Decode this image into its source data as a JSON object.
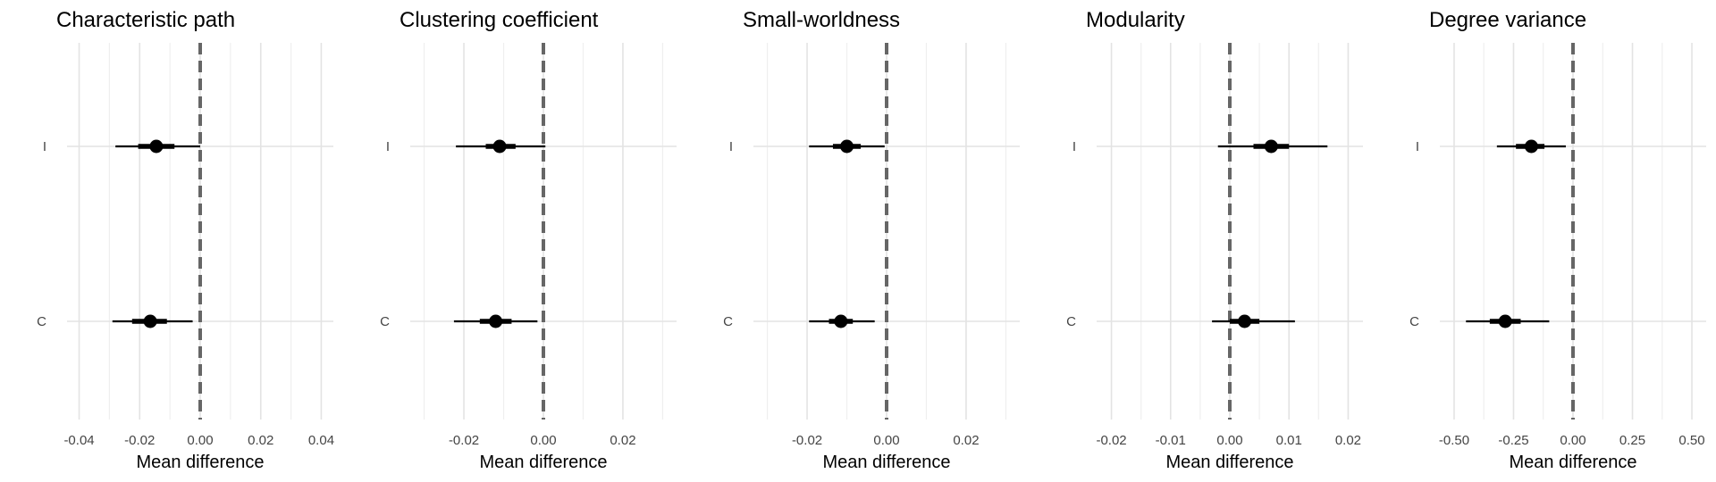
{
  "chart_data": [
    {
      "type": "scatter",
      "title": "Characteristic path",
      "xlabel": "Mean difference",
      "xlim": [
        -0.044,
        0.044
      ],
      "xticks": [
        -0.04,
        -0.02,
        0.0,
        0.02,
        0.04
      ],
      "xtick_labels": [
        "-0.04",
        "-0.02",
        "0.00",
        "0.02",
        "0.04"
      ],
      "minor_xticks": [
        -0.03,
        -0.01,
        0.01,
        0.03
      ],
      "categories": [
        "I",
        "C"
      ],
      "estimates": [
        {
          "category": "I",
          "mean": -0.0145,
          "inner": [
            -0.0205,
            -0.0085
          ],
          "outer": [
            -0.028,
            0.0
          ]
        },
        {
          "category": "C",
          "mean": -0.0165,
          "inner": [
            -0.0225,
            -0.011
          ],
          "outer": [
            -0.029,
            -0.0025
          ]
        }
      ],
      "reference_line": 0
    },
    {
      "type": "scatter",
      "title": "Clustering coefficient",
      "xlabel": "Mean difference",
      "xlim": [
        -0.0335,
        0.0335
      ],
      "xticks": [
        -0.02,
        0.0,
        0.02
      ],
      "xtick_labels": [
        "-0.02",
        "0.00",
        "0.02"
      ],
      "minor_xticks": [
        -0.03,
        -0.01,
        0.01,
        0.03
      ],
      "categories": [
        "I",
        "C"
      ],
      "estimates": [
        {
          "category": "I",
          "mean": -0.011,
          "inner": [
            -0.0145,
            -0.007
          ],
          "outer": [
            -0.022,
            0.0005
          ]
        },
        {
          "category": "C",
          "mean": -0.012,
          "inner": [
            -0.016,
            -0.008
          ],
          "outer": [
            -0.0225,
            -0.0015
          ]
        }
      ],
      "reference_line": 0
    },
    {
      "type": "scatter",
      "title": "Small-worldness",
      "xlabel": "Mean difference",
      "xlim": [
        -0.0335,
        0.0335
      ],
      "xticks": [
        -0.02,
        0.0,
        0.02
      ],
      "xtick_labels": [
        "-0.02",
        "0.00",
        "0.02"
      ],
      "minor_xticks": [
        -0.03,
        -0.01,
        0.01,
        0.03
      ],
      "categories": [
        "I",
        "C"
      ],
      "estimates": [
        {
          "category": "I",
          "mean": -0.01,
          "inner": [
            -0.0135,
            -0.0065
          ],
          "outer": [
            -0.0195,
            -0.0005
          ]
        },
        {
          "category": "C",
          "mean": -0.0115,
          "inner": [
            -0.0145,
            -0.0085
          ],
          "outer": [
            -0.0195,
            -0.003
          ]
        }
      ],
      "reference_line": 0
    },
    {
      "type": "scatter",
      "title": "Modularity",
      "xlabel": "Mean difference",
      "xlim": [
        -0.0225,
        0.0225
      ],
      "xticks": [
        -0.02,
        -0.01,
        0.0,
        0.01,
        0.02
      ],
      "xtick_labels": [
        "-0.02",
        "-0.01",
        "0.00",
        "0.01",
        "0.02"
      ],
      "minor_xticks": [
        -0.015,
        -0.005,
        0.005,
        0.015
      ],
      "categories": [
        "I",
        "C"
      ],
      "estimates": [
        {
          "category": "I",
          "mean": 0.007,
          "inner": [
            0.004,
            0.01
          ],
          "outer": [
            -0.002,
            0.0165
          ]
        },
        {
          "category": "C",
          "mean": 0.0025,
          "inner": [
            0.0,
            0.005
          ],
          "outer": [
            -0.003,
            0.011
          ]
        }
      ],
      "reference_line": 0
    },
    {
      "type": "scatter",
      "title": "Degree variance",
      "xlabel": "Mean difference",
      "xlim": [
        -0.56,
        0.56
      ],
      "xticks": [
        -0.5,
        -0.25,
        0.0,
        0.25,
        0.5
      ],
      "xtick_labels": [
        "-0.50",
        "-0.25",
        "0.00",
        "0.25",
        "0.50"
      ],
      "minor_xticks": [
        -0.375,
        -0.125,
        0.125,
        0.375
      ],
      "categories": [
        "I",
        "C"
      ],
      "estimates": [
        {
          "category": "I",
          "mean": -0.175,
          "inner": [
            -0.24,
            -0.12
          ],
          "outer": [
            -0.32,
            -0.03
          ]
        },
        {
          "category": "C",
          "mean": -0.285,
          "inner": [
            -0.35,
            -0.22
          ],
          "outer": [
            -0.45,
            -0.1
          ]
        }
      ],
      "reference_line": 0
    }
  ],
  "colors": {
    "point": "#000000",
    "interval": "#000000",
    "reference_line": "#666666",
    "grid_major": "#e3e3e3",
    "grid_minor": "#efefef",
    "title_text": "#000000",
    "tick_text": "#444444"
  }
}
